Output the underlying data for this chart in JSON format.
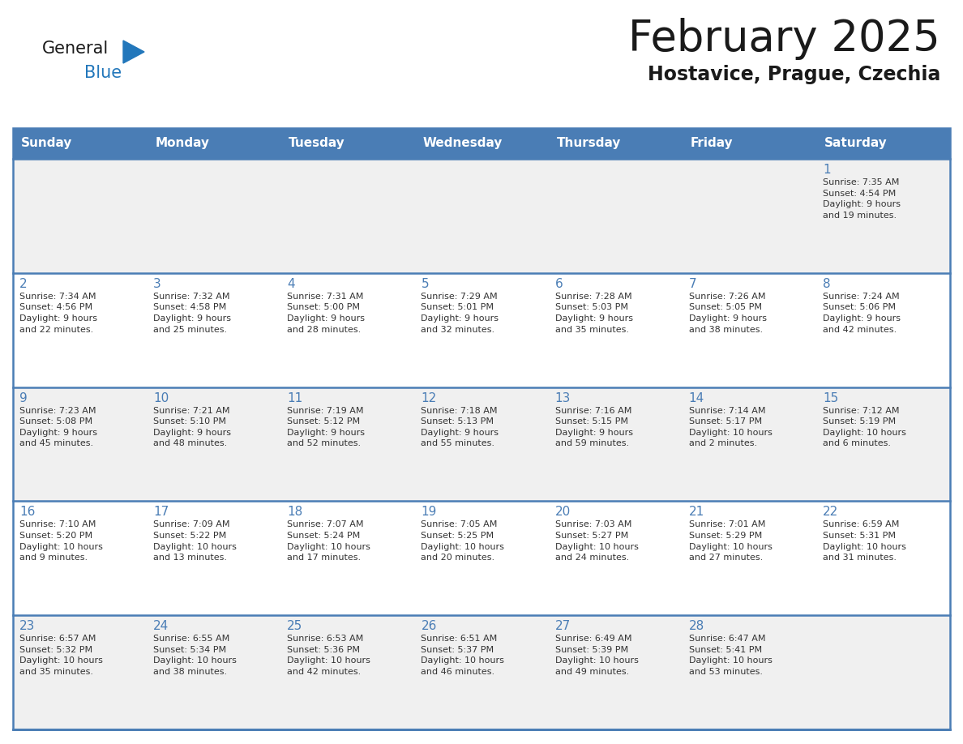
{
  "title": "February 2025",
  "subtitle": "Hostavice, Prague, Czechia",
  "header_bg_color": "#4A7DB5",
  "header_text_color": "#FFFFFF",
  "weekdays": [
    "Sunday",
    "Monday",
    "Tuesday",
    "Wednesday",
    "Thursday",
    "Friday",
    "Saturday"
  ],
  "row_colors": [
    "#F0F0F0",
    "#FFFFFF"
  ],
  "separator_color": "#4A7DB5",
  "day_number_color": "#4A7DB5",
  "text_color": "#333333",
  "logo_general_color": "#1a1a1a",
  "logo_blue_color": "#2277BB",
  "logo_triangle_color": "#2277BB",
  "calendar_data": [
    [
      {
        "day": null,
        "info": null
      },
      {
        "day": null,
        "info": null
      },
      {
        "day": null,
        "info": null
      },
      {
        "day": null,
        "info": null
      },
      {
        "day": null,
        "info": null
      },
      {
        "day": null,
        "info": null
      },
      {
        "day": 1,
        "info": "Sunrise: 7:35 AM\nSunset: 4:54 PM\nDaylight: 9 hours\nand 19 minutes."
      }
    ],
    [
      {
        "day": 2,
        "info": "Sunrise: 7:34 AM\nSunset: 4:56 PM\nDaylight: 9 hours\nand 22 minutes."
      },
      {
        "day": 3,
        "info": "Sunrise: 7:32 AM\nSunset: 4:58 PM\nDaylight: 9 hours\nand 25 minutes."
      },
      {
        "day": 4,
        "info": "Sunrise: 7:31 AM\nSunset: 5:00 PM\nDaylight: 9 hours\nand 28 minutes."
      },
      {
        "day": 5,
        "info": "Sunrise: 7:29 AM\nSunset: 5:01 PM\nDaylight: 9 hours\nand 32 minutes."
      },
      {
        "day": 6,
        "info": "Sunrise: 7:28 AM\nSunset: 5:03 PM\nDaylight: 9 hours\nand 35 minutes."
      },
      {
        "day": 7,
        "info": "Sunrise: 7:26 AM\nSunset: 5:05 PM\nDaylight: 9 hours\nand 38 minutes."
      },
      {
        "day": 8,
        "info": "Sunrise: 7:24 AM\nSunset: 5:06 PM\nDaylight: 9 hours\nand 42 minutes."
      }
    ],
    [
      {
        "day": 9,
        "info": "Sunrise: 7:23 AM\nSunset: 5:08 PM\nDaylight: 9 hours\nand 45 minutes."
      },
      {
        "day": 10,
        "info": "Sunrise: 7:21 AM\nSunset: 5:10 PM\nDaylight: 9 hours\nand 48 minutes."
      },
      {
        "day": 11,
        "info": "Sunrise: 7:19 AM\nSunset: 5:12 PM\nDaylight: 9 hours\nand 52 minutes."
      },
      {
        "day": 12,
        "info": "Sunrise: 7:18 AM\nSunset: 5:13 PM\nDaylight: 9 hours\nand 55 minutes."
      },
      {
        "day": 13,
        "info": "Sunrise: 7:16 AM\nSunset: 5:15 PM\nDaylight: 9 hours\nand 59 minutes."
      },
      {
        "day": 14,
        "info": "Sunrise: 7:14 AM\nSunset: 5:17 PM\nDaylight: 10 hours\nand 2 minutes."
      },
      {
        "day": 15,
        "info": "Sunrise: 7:12 AM\nSunset: 5:19 PM\nDaylight: 10 hours\nand 6 minutes."
      }
    ],
    [
      {
        "day": 16,
        "info": "Sunrise: 7:10 AM\nSunset: 5:20 PM\nDaylight: 10 hours\nand 9 minutes."
      },
      {
        "day": 17,
        "info": "Sunrise: 7:09 AM\nSunset: 5:22 PM\nDaylight: 10 hours\nand 13 minutes."
      },
      {
        "day": 18,
        "info": "Sunrise: 7:07 AM\nSunset: 5:24 PM\nDaylight: 10 hours\nand 17 minutes."
      },
      {
        "day": 19,
        "info": "Sunrise: 7:05 AM\nSunset: 5:25 PM\nDaylight: 10 hours\nand 20 minutes."
      },
      {
        "day": 20,
        "info": "Sunrise: 7:03 AM\nSunset: 5:27 PM\nDaylight: 10 hours\nand 24 minutes."
      },
      {
        "day": 21,
        "info": "Sunrise: 7:01 AM\nSunset: 5:29 PM\nDaylight: 10 hours\nand 27 minutes."
      },
      {
        "day": 22,
        "info": "Sunrise: 6:59 AM\nSunset: 5:31 PM\nDaylight: 10 hours\nand 31 minutes."
      }
    ],
    [
      {
        "day": 23,
        "info": "Sunrise: 6:57 AM\nSunset: 5:32 PM\nDaylight: 10 hours\nand 35 minutes."
      },
      {
        "day": 24,
        "info": "Sunrise: 6:55 AM\nSunset: 5:34 PM\nDaylight: 10 hours\nand 38 minutes."
      },
      {
        "day": 25,
        "info": "Sunrise: 6:53 AM\nSunset: 5:36 PM\nDaylight: 10 hours\nand 42 minutes."
      },
      {
        "day": 26,
        "info": "Sunrise: 6:51 AM\nSunset: 5:37 PM\nDaylight: 10 hours\nand 46 minutes."
      },
      {
        "day": 27,
        "info": "Sunrise: 6:49 AM\nSunset: 5:39 PM\nDaylight: 10 hours\nand 49 minutes."
      },
      {
        "day": 28,
        "info": "Sunrise: 6:47 AM\nSunset: 5:41 PM\nDaylight: 10 hours\nand 53 minutes."
      },
      {
        "day": null,
        "info": null
      }
    ]
  ]
}
